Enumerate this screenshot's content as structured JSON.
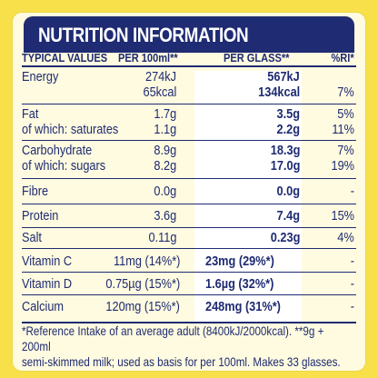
{
  "title": "NUTRITION INFORMATION",
  "headers": {
    "typical": "TYPICAL VALUES",
    "per100": "PER 100ml**",
    "perGlass": "PER GLASS**",
    "ri": "%RI*"
  },
  "rows": [
    {
      "label": "Energy",
      "label2": "",
      "v100": "274kJ",
      "v100b": "65kcal",
      "glass": "567kJ",
      "glassb": "134kcal",
      "ri": "",
      "rib": "7%"
    },
    {
      "label": "Fat",
      "label2": "of which: saturates",
      "v100": "1.7g",
      "v100b": "1.1g",
      "glass": "3.5g",
      "glassb": "2.2g",
      "ri": "5%",
      "rib": "11%"
    },
    {
      "label": "Carbohydrate",
      "label2": "of which: sugars",
      "v100": "8.9g",
      "v100b": "8.2g",
      "glass": "18.3g",
      "glassb": "17.0g",
      "ri": "7%",
      "rib": "19%"
    },
    {
      "label": "Fibre",
      "v100": "0.0g",
      "glass": "0.0g",
      "ri": "-"
    },
    {
      "label": "Protein",
      "v100": "3.6g",
      "glass": "7.4g",
      "ri": "15%"
    },
    {
      "label": "Salt",
      "v100": "0.11g",
      "glass": "0.23g",
      "ri": "4%"
    },
    {
      "label": "Vitamin C",
      "v100": "11mg (14%*)",
      "glass": "23mg (29%*)",
      "ri": "-"
    },
    {
      "label": "Vitamin D",
      "v100": "0.75µg (15%*)",
      "glass": "1.6µg (32%*)",
      "ri": "-"
    },
    {
      "label": "Calcium",
      "v100": "120mg (15%*)",
      "glass": "248mg (31%*)",
      "ri": "-"
    }
  ],
  "footnote": {
    "line1": "*Reference Intake of an average adult (8400kJ/2000kcal). **9g + 200ml",
    "line2": "semi-skimmed milk; used as basis for per 100ml. Makes 33 glasses."
  },
  "colors": {
    "navy": "#1f2b72",
    "yellow": "#f7e04a",
    "cream": "#fffbe0"
  }
}
